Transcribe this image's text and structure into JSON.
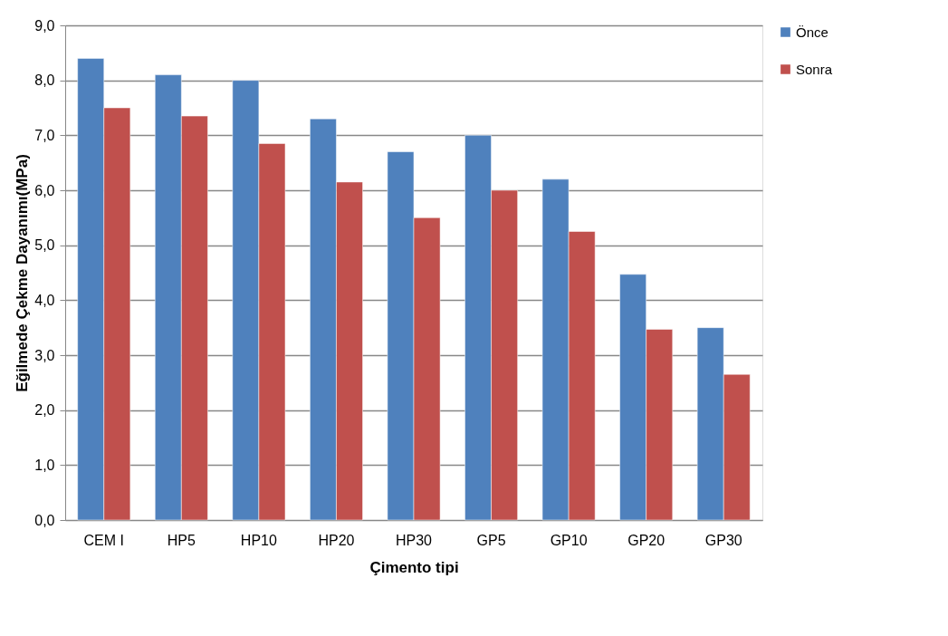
{
  "chart_data": {
    "type": "bar",
    "xlabel": "Çimento tipi",
    "ylabel": "Eğilmede Çekme Dayanımı(MPa)",
    "categories": [
      "CEM I",
      "HP5",
      "HP10",
      "HP20",
      "HP30",
      "GP5",
      "GP10",
      "GP20",
      "GP30"
    ],
    "series": [
      {
        "name": "Önce",
        "color": "#4f81bd",
        "values": [
          8.4,
          8.1,
          8.0,
          7.3,
          6.7,
          7.0,
          6.2,
          4.47,
          3.5
        ]
      },
      {
        "name": "Sonra",
        "color": "#c0504d",
        "values": [
          7.5,
          7.35,
          6.85,
          6.15,
          5.5,
          6.0,
          5.25,
          3.47,
          2.65
        ]
      }
    ],
    "ylim": [
      0,
      9
    ],
    "yticks": [
      {
        "value": 0,
        "label": "0,0"
      },
      {
        "value": 1,
        "label": "1,0"
      },
      {
        "value": 2,
        "label": "2,0"
      },
      {
        "value": 3,
        "label": "3,0"
      },
      {
        "value": 4,
        "label": "4,0"
      },
      {
        "value": 5,
        "label": "5,0"
      },
      {
        "value": 6,
        "label": "6,0"
      },
      {
        "value": 7,
        "label": "7,0"
      },
      {
        "value": 8,
        "label": "8,0"
      },
      {
        "value": 9,
        "label": "9,0"
      }
    ],
    "grid": "y",
    "legend": "right"
  }
}
